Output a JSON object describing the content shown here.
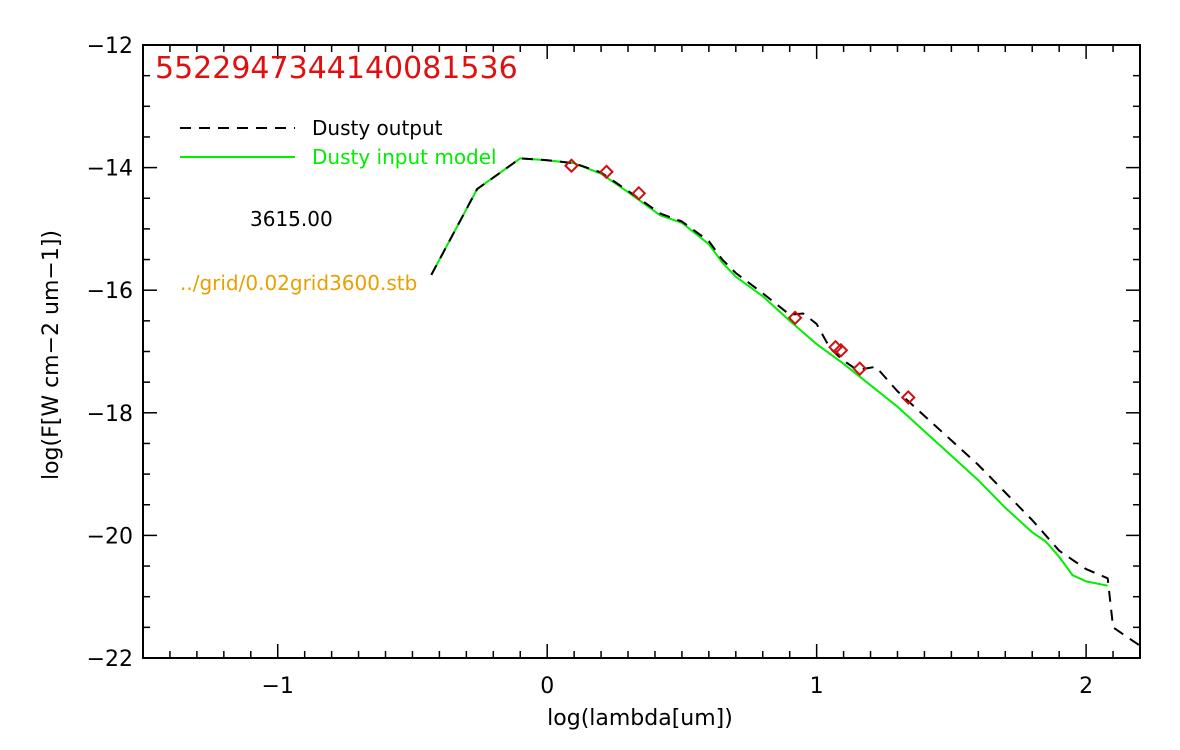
{
  "chart_data": {
    "type": "line",
    "title": "5522947344140081536",
    "xlabel": "log(lambda[um])",
    "ylabel": "log(F[W cm−2 um−1])",
    "xlim": [
      -1.5,
      2.2
    ],
    "ylim": [
      -22,
      -12
    ],
    "x_ticks": [
      -1,
      0,
      1,
      2
    ],
    "x_tick_labels": [
      "−1",
      "0",
      "1",
      "2"
    ],
    "y_ticks": [
      -22,
      -20,
      -18,
      -16,
      -14,
      -12
    ],
    "y_tick_labels": [
      "−22",
      "−20",
      "−18",
      "−16",
      "−14",
      "−12"
    ],
    "grid": false,
    "legend_position": "top-left",
    "legend": [
      {
        "label": "Dusty output",
        "color": "#000000",
        "style": "dashed"
      },
      {
        "label": "Dusty input model",
        "color": "#00ee00",
        "style": "solid"
      }
    ],
    "annotations": [
      {
        "text": "3615.00",
        "color": "#000000"
      },
      {
        "text": "../grid/0.02grid3600.stb",
        "color": "#e8a000"
      }
    ],
    "colors": {
      "title": "#e01010",
      "input": "#00ee00",
      "output": "#000000",
      "markers": "#d01010"
    },
    "series": [
      {
        "name": "Dusty input model",
        "color": "#00ee00",
        "style": "solid",
        "x": [
          -0.43,
          -0.26,
          -0.1,
          0.0,
          0.1,
          0.2,
          0.3,
          0.42,
          0.5,
          0.6,
          0.65,
          0.7,
          0.8,
          0.9,
          1.0,
          1.1,
          1.2,
          1.3,
          1.4,
          1.5,
          1.6,
          1.7,
          1.8,
          1.85,
          1.9,
          1.95,
          2.0,
          2.08
        ],
        "y": [
          -15.75,
          -14.35,
          -13.85,
          -13.88,
          -13.93,
          -14.1,
          -14.4,
          -14.78,
          -14.9,
          -15.25,
          -15.55,
          -15.78,
          -16.1,
          -16.5,
          -16.88,
          -17.2,
          -17.55,
          -17.9,
          -18.3,
          -18.7,
          -19.1,
          -19.55,
          -19.95,
          -20.1,
          -20.35,
          -20.65,
          -20.75,
          -20.82
        ]
      },
      {
        "name": "Dusty output",
        "color": "#000000",
        "style": "dashed",
        "x": [
          -0.43,
          -0.26,
          -0.1,
          0.0,
          0.1,
          0.2,
          0.3,
          0.42,
          0.5,
          0.6,
          0.65,
          0.7,
          0.8,
          0.9,
          0.95,
          1.0,
          1.05,
          1.1,
          1.15,
          1.22,
          1.3,
          1.4,
          1.5,
          1.6,
          1.7,
          1.8,
          1.9,
          2.0,
          2.08,
          2.1,
          2.2
        ],
        "y": [
          -15.75,
          -14.35,
          -13.85,
          -13.88,
          -13.93,
          -14.08,
          -14.38,
          -14.75,
          -14.88,
          -15.2,
          -15.5,
          -15.72,
          -16.05,
          -16.4,
          -16.38,
          -16.55,
          -16.95,
          -17.15,
          -17.3,
          -17.25,
          -17.65,
          -18.05,
          -18.45,
          -18.85,
          -19.3,
          -19.75,
          -20.25,
          -20.55,
          -20.7,
          -21.5,
          -21.8
        ]
      },
      {
        "name": "",
        "type": "scatter",
        "marker": "diamond",
        "color": "#d01010",
        "x": [
          0.09,
          0.22,
          0.34,
          0.92,
          1.07,
          1.09,
          1.16,
          1.34
        ],
        "y": [
          -13.97,
          -14.07,
          -14.42,
          -16.45,
          -16.93,
          -16.98,
          -17.28,
          -17.75
        ]
      }
    ]
  }
}
